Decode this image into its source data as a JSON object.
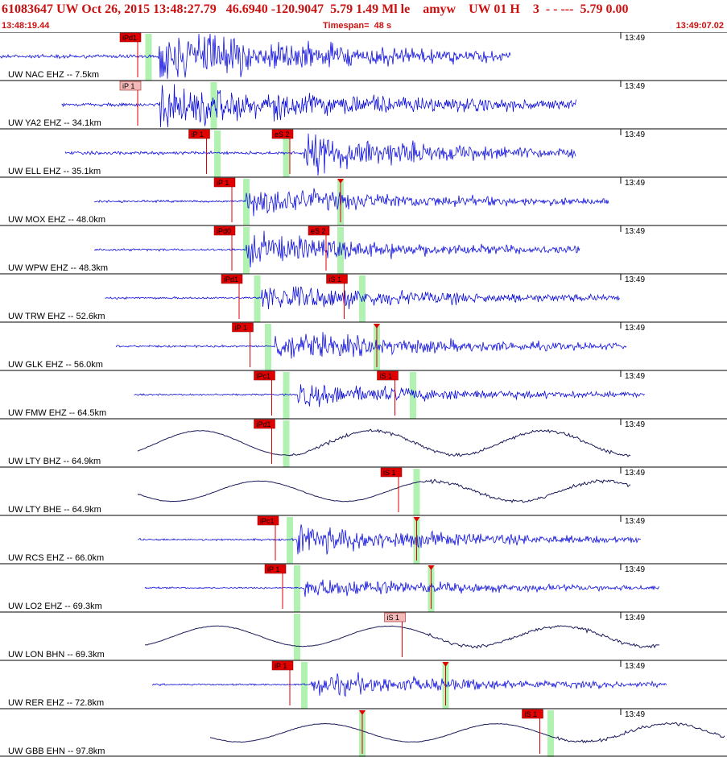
{
  "header": {
    "title": "61083647 UW Oct 26, 2015 13:48:27.79   46.6940 -120.9047  5.79 1.49 Ml le    amyw    UW 01 H    3  - - ---  5.79 0.00",
    "start_time": "13:48:19.44",
    "timespan": "Timespan=  48 s",
    "end_time": "13:49:07.02"
  },
  "colors": {
    "header_text": "#cc1111",
    "trace_z": "#1010dd",
    "trace_h": "#1a1a5a",
    "pick_box": "#e00000",
    "pick_box_light": "#f3b8b8",
    "pick_window": "#a8f0a8",
    "grid": "#000000"
  },
  "time_mark_label": "13:49",
  "traces": [
    {
      "label": "UW NAC EHZ -- 7.5km",
      "kind": "z",
      "start": 0.0,
      "end": 0.705,
      "onset": 0.22,
      "amp": 1.0,
      "picks": [
        {
          "label": "iPd1",
          "t": 0.19,
          "window": 0.205
        }
      ],
      "sub_marks": [
        {
          "t": 0.235
        }
      ]
    },
    {
      "label": "UW YA2 EHZ -- 34.1km",
      "kind": "z",
      "start": 0.085,
      "end": 0.795,
      "onset": 0.22,
      "amp": 0.9,
      "picks": [
        {
          "label": "iP 1",
          "t": 0.19,
          "window": 0.295,
          "light": true
        }
      ]
    },
    {
      "label": "UW ELL EHZ -- 35.1km",
      "kind": "z",
      "start": 0.09,
      "end": 0.795,
      "onset": 0.42,
      "amp": 0.8,
      "picks": [
        {
          "label": "iP 1",
          "t": 0.285,
          "window": 0.3
        },
        {
          "label": "eS 2",
          "t": 0.4,
          "window": 0.395
        }
      ]
    },
    {
      "label": "UW MOX EHZ -- 48.0km",
      "kind": "z",
      "start": 0.13,
      "end": 0.84,
      "onset": 0.34,
      "amp": 0.55,
      "picks": [
        {
          "label": "iP 1",
          "t": 0.32,
          "window": 0.34
        },
        {
          "label": "",
          "t": 0.47,
          "window": 0.47
        }
      ]
    },
    {
      "label": "UW WPW EHZ -- 48.3km",
      "kind": "z",
      "start": 0.13,
      "end": 0.8,
      "onset": 0.34,
      "amp": 0.6,
      "picks": [
        {
          "label": "iPd0",
          "t": 0.32,
          "window": 0.34
        },
        {
          "label": "eS 2",
          "t": 0.45,
          "window": 0.47
        }
      ]
    },
    {
      "label": "UW TRW EHZ -- 52.6km",
      "kind": "z",
      "start": 0.145,
      "end": 0.855,
      "onset": 0.36,
      "amp": 0.55,
      "picks": [
        {
          "label": "iPd1",
          "t": 0.33,
          "window": 0.355
        },
        {
          "label": "iS 1",
          "t": 0.475,
          "window": 0.5
        }
      ]
    },
    {
      "label": "UW GLK EHZ -- 56.0km",
      "kind": "z",
      "start": 0.16,
      "end": 0.865,
      "onset": 0.38,
      "amp": 0.55,
      "picks": [
        {
          "label": "iP 1",
          "t": 0.345,
          "window": 0.37
        },
        {
          "label": "",
          "t": 0.52,
          "window": 0.52
        }
      ]
    },
    {
      "label": "UW FMW EHZ -- 64.5km",
      "kind": "z",
      "start": 0.185,
      "end": 0.89,
      "onset": 0.41,
      "amp": 0.45,
      "picks": [
        {
          "label": "iPc1",
          "t": 0.375,
          "window": 0.395
        },
        {
          "label": "iS 1",
          "t": 0.545,
          "window": 0.57
        }
      ]
    },
    {
      "label": "UW LTY BHZ -- 64.9km",
      "kind": "h",
      "start": 0.19,
      "end": 0.87,
      "onset": 0.4,
      "amp": 0.6,
      "picks": [
        {
          "label": "iPd1",
          "t": 0.375,
          "window": 0.395
        }
      ]
    },
    {
      "label": "UW LTY BHE -- 64.9km",
      "kind": "h",
      "start": 0.19,
      "end": 0.87,
      "onset": 0.58,
      "amp": 0.5,
      "picks": [
        {
          "label": "iS 1",
          "t": 0.55,
          "window": 0.575
        }
      ]
    },
    {
      "label": "UW RCS EHZ -- 66.0km",
      "kind": "z",
      "start": 0.19,
      "end": 0.885,
      "onset": 0.41,
      "amp": 0.55,
      "picks": [
        {
          "label": "iPc1",
          "t": 0.38,
          "window": 0.4
        },
        {
          "label": "",
          "t": 0.575,
          "window": 0.575
        }
      ]
    },
    {
      "label": "UW LO2 EHZ -- 69.3km",
      "kind": "z",
      "start": 0.2,
      "end": 0.91,
      "onset": 0.42,
      "amp": 0.4,
      "picks": [
        {
          "label": "iP 1",
          "t": 0.39,
          "window": 0.41
        },
        {
          "label": "",
          "t": 0.595,
          "window": 0.595
        }
      ]
    },
    {
      "label": "UW LON BHN -- 69.3km",
      "kind": "h",
      "start": 0.2,
      "end": 0.91,
      "onset": 0.59,
      "amp": 0.5,
      "picks": [
        {
          "label": "iS 1",
          "t": 0.555,
          "window": 0.41,
          "light": true
        }
      ]
    },
    {
      "label": "UW RER EHZ -- 72.8km",
      "kind": "z",
      "start": 0.21,
      "end": 0.92,
      "onset": 0.43,
      "amp": 0.45,
      "picks": [
        {
          "label": "iP 1",
          "t": 0.4,
          "window": 0.42
        },
        {
          "label": "",
          "t": 0.615,
          "window": 0.615
        }
      ]
    },
    {
      "label": "UW GBB EHN -- 97.8km",
      "kind": "h",
      "start": 0.29,
      "end": 1.0,
      "onset": 0.77,
      "amp": 0.45,
      "picks": [
        {
          "label": "iS 1",
          "t": 0.745,
          "window": 0.76
        },
        {
          "label": "",
          "t": 0.5,
          "window": 0.5
        }
      ]
    }
  ]
}
